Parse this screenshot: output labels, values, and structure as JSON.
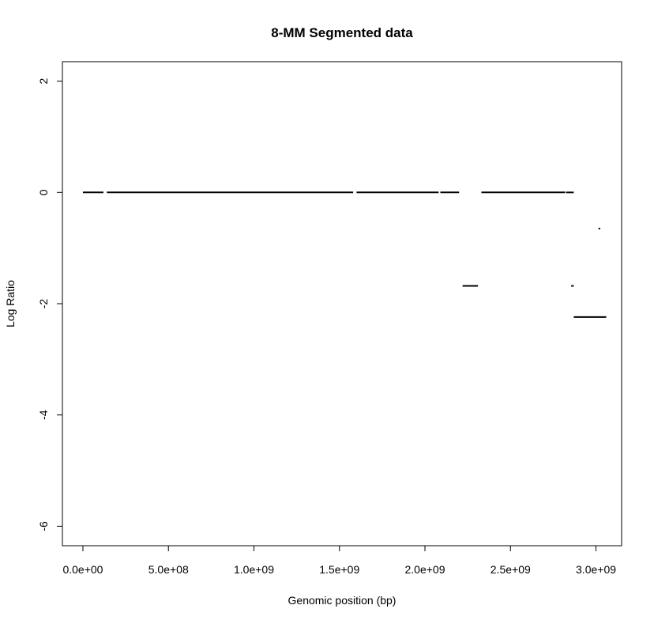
{
  "chart_data": {
    "type": "line",
    "title": "8-MM Segmented data",
    "xlabel": "Genomic position (bp)",
    "ylabel": "Log Ratio",
    "xlim": [
      -120000000,
      3150000000
    ],
    "ylim": [
      -6.35,
      2.35
    ],
    "x_ticks": [
      {
        "value": 0,
        "label": "0.0e+00"
      },
      {
        "value": 500000000,
        "label": "5.0e+08"
      },
      {
        "value": 1000000000,
        "label": "1.0e+09"
      },
      {
        "value": 1500000000,
        "label": "1.5e+09"
      },
      {
        "value": 2000000000,
        "label": "2.0e+09"
      },
      {
        "value": 2500000000,
        "label": "2.5e+09"
      },
      {
        "value": 3000000000,
        "label": "3.0e+09"
      }
    ],
    "y_ticks": [
      {
        "value": 2,
        "label": "2"
      },
      {
        "value": 0,
        "label": "0"
      },
      {
        "value": -2,
        "label": "-2"
      },
      {
        "value": -4,
        "label": "-4"
      },
      {
        "value": -6,
        "label": "-6"
      }
    ],
    "grid": false,
    "segments": [
      {
        "x_start": 0,
        "x_end": 120000000,
        "value": 0
      },
      {
        "x_start": 140000000,
        "x_end": 1580000000,
        "value": 0
      },
      {
        "x_start": 1600000000,
        "x_end": 2080000000,
        "value": 0
      },
      {
        "x_start": 2090000000,
        "x_end": 2200000000,
        "value": 0
      },
      {
        "x_start": 2220000000,
        "x_end": 2310000000,
        "value": -1.68
      },
      {
        "x_start": 2330000000,
        "x_end": 2820000000,
        "value": 0
      },
      {
        "x_start": 2825000000,
        "x_end": 2870000000,
        "value": 0
      },
      {
        "x_start": 2855000000,
        "x_end": 2870000000,
        "value": -1.68
      },
      {
        "x_start": 2870000000,
        "x_end": 3060000000,
        "value": -2.24
      },
      {
        "x_start": 3015000000,
        "x_end": 3025000000,
        "value": -0.65
      }
    ]
  }
}
